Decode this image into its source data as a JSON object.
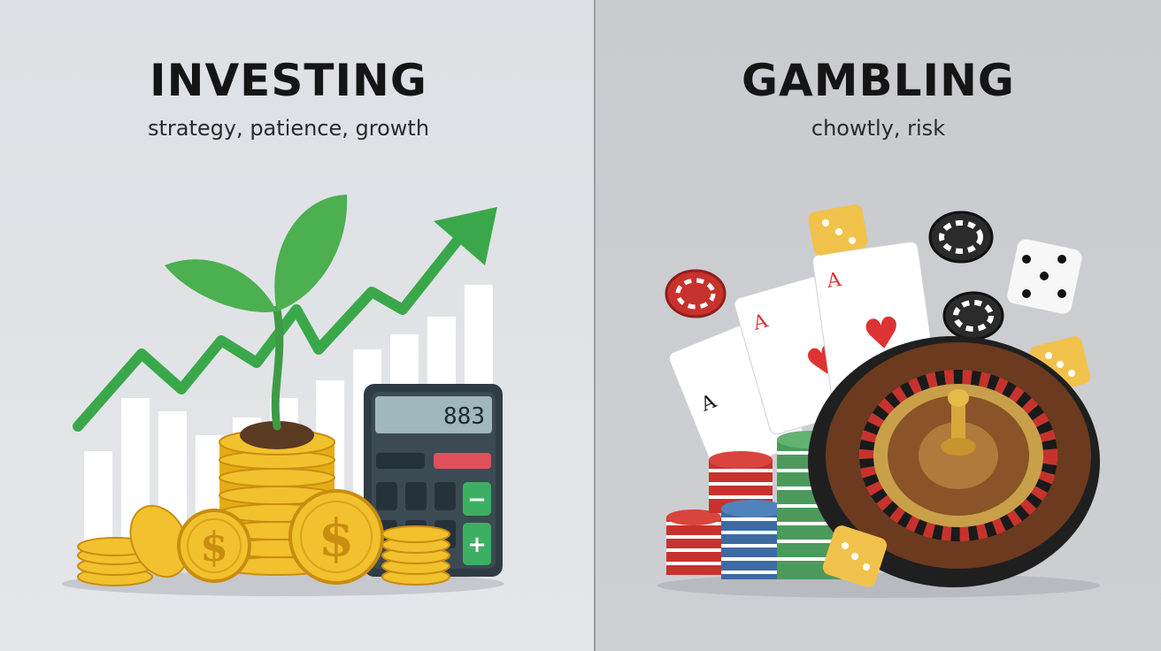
{
  "left": {
    "title": "INVESTING",
    "subtitle": "strategy, patience, growth",
    "calculator_display": "883",
    "calculator_keys": {
      "minus": "−",
      "plus": "+"
    },
    "coin_symbol": "$"
  },
  "right": {
    "title": "GAMBLING",
    "subtitle": "chowtly, risk",
    "card_rank": "A"
  },
  "colors": {
    "left_background": "#dde0e4",
    "right_background": "#c9cbcf",
    "plant_green": "#4caf50",
    "arrow_green": "#3aa84a",
    "coin_gold": "#f2c12e",
    "calculator_body": "#2f3c44",
    "roulette_wood": "#6b3a1f",
    "chip_red": "#c8322d",
    "chip_blue": "#3d6aa3",
    "chip_green": "#4c9a5b"
  },
  "icons": [
    "seedling-icon",
    "growth-arrow-icon",
    "coin-stack-icon",
    "calculator-icon",
    "playing-card-icon",
    "roulette-wheel-icon",
    "dice-icon",
    "poker-chip-icon"
  ]
}
